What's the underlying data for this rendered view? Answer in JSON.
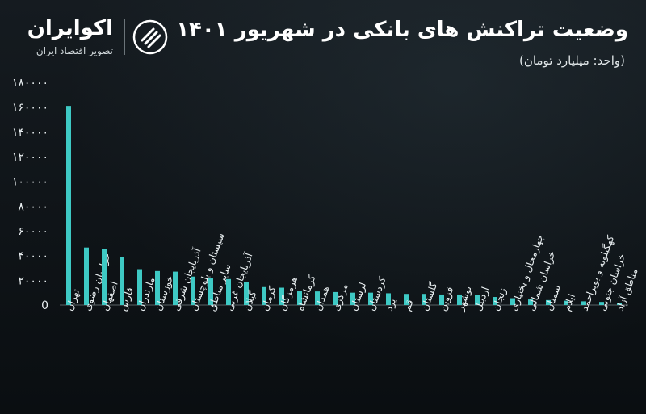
{
  "header": {
    "title": "وضعیت تراکنش های بانکی در شهریور ۱۴۰۱",
    "subtitle": "(واحد: میلیارد تومان)"
  },
  "brand": {
    "name": "اکوایران",
    "tagline": "تصویر اقتصاد ایران",
    "icon": "ecoiran-logo-icon"
  },
  "colors": {
    "bar": "#3ec9c4",
    "background": "#0d1216",
    "axis": "#e8eef0"
  },
  "chart_data": {
    "type": "bar",
    "title": "وضعیت تراکنش های بانکی در شهریور ۱۴۰۱",
    "ylabel": "",
    "xlabel": "",
    "ylim": [
      0,
      180000
    ],
    "yticks": [
      0,
      20000,
      40000,
      60000,
      80000,
      100000,
      120000,
      140000,
      160000,
      180000
    ],
    "ytick_labels": [
      "0",
      "۲۰۰۰۰",
      "۴۰۰۰۰",
      "۶۰۰۰۰",
      "۸۰۰۰۰",
      "۱۰۰۰۰۰",
      "۱۲۰۰۰۰",
      "۱۴۰۰۰۰",
      "۱۶۰۰۰۰",
      "۱۸۰۰۰۰"
    ],
    "grid": false,
    "categories": [
      "تهران",
      "خراسان رضوی",
      "اصفهان",
      "فارس",
      "مازندران",
      "خوزستان",
      "آذربایجان شرقی",
      "سیستان و بلوچستان",
      "سایر مناطق",
      "آذربایجان غربی",
      "گیلان",
      "کرمان",
      "هرمزگان",
      "کرمانشاه",
      "همدان",
      "مرکزی",
      "لرستان",
      "کردستان",
      "یزد",
      "قم",
      "گلستان",
      "قزوین",
      "بوشهر",
      "اردبیل",
      "زنجان",
      "چهارمحال و بختیاری",
      "خراسان شمالی",
      "سمنان",
      "ایلام",
      "کهگیلویه و بویراحمد",
      "خراسان جنوبی",
      "مناطق آزاد"
    ],
    "values": [
      161000,
      46500,
      45000,
      39000,
      29000,
      27500,
      27000,
      23000,
      21500,
      21000,
      18500,
      14500,
      14000,
      11500,
      11000,
      10500,
      10000,
      10000,
      9500,
      9000,
      9000,
      8500,
      8500,
      8000,
      6500,
      5500,
      4500,
      4000,
      3500,
      3000,
      2500,
      1500
    ]
  }
}
